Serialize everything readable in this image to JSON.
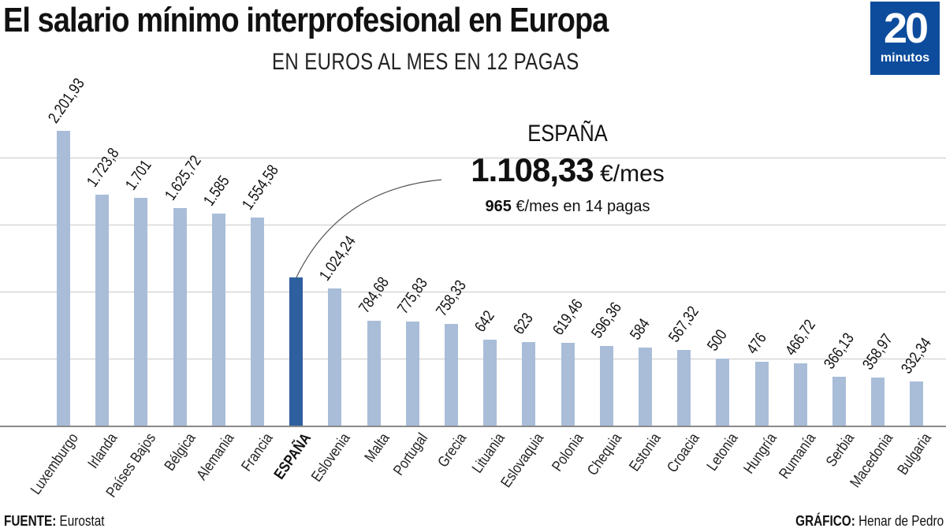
{
  "header": {
    "title": "El salario mínimo interprofesional en Europa",
    "subtitle": "EN EUROS AL MES EN 12 PAGAS"
  },
  "logo": {
    "number": "20",
    "word": "minutos",
    "color": "#0d4c9c"
  },
  "callout": {
    "country": "ESPAÑA",
    "value": "1.108,33",
    "unit": " €/mes",
    "sub_value": "965",
    "sub_text": " €/mes en 14 pagas"
  },
  "footer": {
    "source_label": "FUENTE:",
    "source": " Eurostat",
    "credit_label": "GRÁFICO:",
    "credit": " Henar de Pedro"
  },
  "colors": {
    "bar": "#a9bdd8",
    "highlight": "#2e5f9e",
    "grid": "#c8c8c8"
  },
  "chart_data": {
    "type": "bar",
    "title": "El salario mínimo interprofesional en Europa",
    "subtitle": "EN EUROS AL MES EN 12 PAGAS",
    "xlabel": "",
    "ylabel": "€/mes",
    "ylim": [
      0,
      2500
    ],
    "grid": true,
    "gridlines": [
      500,
      1000,
      1500,
      2000
    ],
    "highlight": "ESPAÑA",
    "categories": [
      "Luxemburgo",
      "Irlanda",
      "Países Bajos",
      "Bélgica",
      "Alemania",
      "Francia",
      "ESPAÑA",
      "Eslovenia",
      "Malta",
      "Portugal",
      "Grecia",
      "Lituania",
      "Eslovaquia",
      "Polonia",
      "Chequia",
      "Estonia",
      "Croacia",
      "Letonia",
      "Hungría",
      "Rumanía",
      "Serbia",
      "Macedonia",
      "Bulgaria"
    ],
    "values": [
      2201.93,
      1723.8,
      1701,
      1625.72,
      1585,
      1554.58,
      1108.33,
      1024.24,
      784.68,
      775.83,
      758.33,
      642,
      623,
      619.46,
      596.36,
      584,
      567.32,
      500,
      476,
      466.72,
      366.13,
      358.97,
      332.34
    ],
    "value_labels": [
      "2.201,93",
      "1.723,8",
      "1.701",
      "1.625,72",
      "1.585",
      "1.554,58",
      "",
      "1.024,24",
      "784,68",
      "775,83",
      "758,33",
      "642",
      "623",
      "619,46",
      "596,36",
      "584",
      "567,32",
      "500",
      "476",
      "466,72",
      "366,13",
      "358,97",
      "332,34"
    ],
    "annotations": [
      "ESPAÑA 1.108,33 €/mes",
      "965 €/mes en 14 pagas"
    ],
    "source": "FUENTE: Eurostat"
  }
}
